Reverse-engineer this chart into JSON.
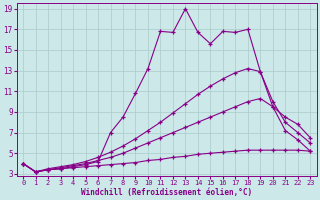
{
  "xlabel": "Windchill (Refroidissement éolien,°C)",
  "bg_color": "#cce8e8",
  "line_color": "#880088",
  "grid_color": "#aacccc",
  "xlim": [
    -0.5,
    23.5
  ],
  "ylim": [
    2.8,
    19.5
  ],
  "xticks": [
    0,
    1,
    2,
    3,
    4,
    5,
    6,
    7,
    8,
    9,
    10,
    11,
    12,
    13,
    14,
    15,
    16,
    17,
    18,
    19,
    20,
    21,
    22,
    23
  ],
  "yticks": [
    3,
    5,
    7,
    9,
    11,
    13,
    15,
    17,
    19
  ],
  "line1_x": [
    0,
    1,
    2,
    3,
    4,
    5,
    6,
    7,
    8,
    9,
    10,
    11,
    12,
    13,
    14,
    15,
    16,
    17,
    18,
    19,
    20,
    21,
    22,
    23
  ],
  "line1_y": [
    4.0,
    3.2,
    3.4,
    3.5,
    3.6,
    3.7,
    3.8,
    3.9,
    4.0,
    4.1,
    4.3,
    4.4,
    4.6,
    4.7,
    4.9,
    5.0,
    5.1,
    5.2,
    5.3,
    5.3,
    5.3,
    5.3,
    5.3,
    5.2
  ],
  "line2_x": [
    0,
    1,
    2,
    3,
    4,
    5,
    6,
    7,
    8,
    9,
    10,
    11,
    12,
    13,
    14,
    15,
    16,
    17,
    18,
    19,
    20,
    21,
    22,
    23
  ],
  "line2_y": [
    4.0,
    3.2,
    3.4,
    3.6,
    3.8,
    4.0,
    4.3,
    4.6,
    5.0,
    5.5,
    6.0,
    6.5,
    7.0,
    7.5,
    8.0,
    8.5,
    9.0,
    9.5,
    10.0,
    10.3,
    9.5,
    8.5,
    7.8,
    6.5
  ],
  "line3_x": [
    0,
    1,
    2,
    3,
    4,
    5,
    6,
    7,
    8,
    9,
    10,
    11,
    12,
    13,
    14,
    15,
    16,
    17,
    18,
    19,
    20,
    21,
    22,
    23
  ],
  "line3_y": [
    4.0,
    3.2,
    3.5,
    3.7,
    3.9,
    4.2,
    4.6,
    5.1,
    5.7,
    6.4,
    7.2,
    8.0,
    8.9,
    9.8,
    10.7,
    11.5,
    12.2,
    12.8,
    13.2,
    12.9,
    10.0,
    8.0,
    7.0,
    6.0
  ],
  "line4_x": [
    0,
    1,
    2,
    3,
    4,
    5,
    6,
    7,
    8,
    9,
    10,
    11,
    12,
    13,
    14,
    15,
    16,
    17,
    18,
    19,
    20,
    21,
    22,
    23
  ],
  "line4_y": [
    4.0,
    3.2,
    3.4,
    3.5,
    3.7,
    3.9,
    4.2,
    7.0,
    8.5,
    10.8,
    13.2,
    16.8,
    16.7,
    19.0,
    16.7,
    15.6,
    16.8,
    16.7,
    17.0,
    12.9,
    9.5,
    7.2,
    6.3,
    5.2
  ]
}
